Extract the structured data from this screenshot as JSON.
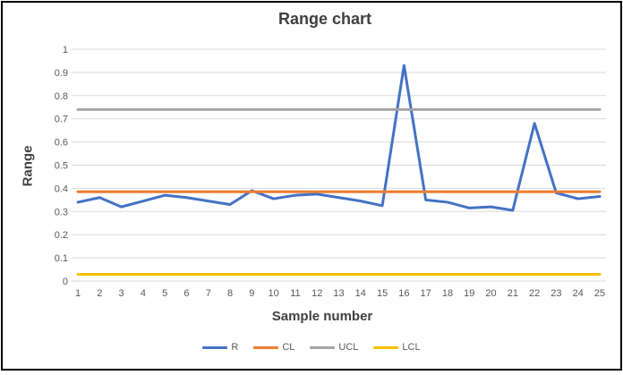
{
  "chart_data": {
    "type": "line",
    "title": "Range chart",
    "xlabel": "Sample number",
    "ylabel": "Range",
    "x": [
      1,
      2,
      3,
      4,
      5,
      6,
      7,
      8,
      9,
      10,
      11,
      12,
      13,
      14,
      15,
      16,
      17,
      18,
      19,
      20,
      21,
      22,
      23,
      24,
      25
    ],
    "x_tick_labels": [
      "1",
      "2",
      "3",
      "4",
      "5",
      "6",
      "7",
      "8",
      "9",
      "10",
      "11",
      "12",
      "13",
      "14",
      "15",
      "16",
      "17",
      "18",
      "19",
      "20",
      "21",
      "22",
      "23",
      "24",
      "25"
    ],
    "y_tick_labels": [
      "0",
      "0.1",
      "0.2",
      "0.3",
      "0.4",
      "0.5",
      "0.6",
      "0.7",
      "0.8",
      "0.9",
      "1"
    ],
    "ylim": [
      0,
      1
    ],
    "grid": true,
    "legend_position": "bottom",
    "series": [
      {
        "name": "R",
        "kind": "data",
        "color": "#4472C4",
        "values": [
          0.34,
          0.36,
          0.32,
          0.345,
          0.37,
          0.36,
          0.345,
          0.33,
          0.39,
          0.355,
          0.37,
          0.375,
          0.36,
          0.345,
          0.325,
          0.93,
          0.35,
          0.34,
          0.315,
          0.32,
          0.305,
          0.68,
          0.38,
          0.355,
          0.365
        ]
      },
      {
        "name": "CL",
        "kind": "constant",
        "color": "#ED7D31",
        "value": 0.385
      },
      {
        "name": "UCL",
        "kind": "constant",
        "color": "#A5A5A5",
        "value": 0.74
      },
      {
        "name": "LCL",
        "kind": "constant",
        "color": "#FFC000",
        "value": 0.029
      }
    ],
    "legend": [
      "R",
      "CL",
      "UCL",
      "LCL"
    ]
  },
  "style_colors": {
    "gridline": "#D9D9D9",
    "tick_text": "#595959",
    "title_text": "#3F3F3F"
  }
}
